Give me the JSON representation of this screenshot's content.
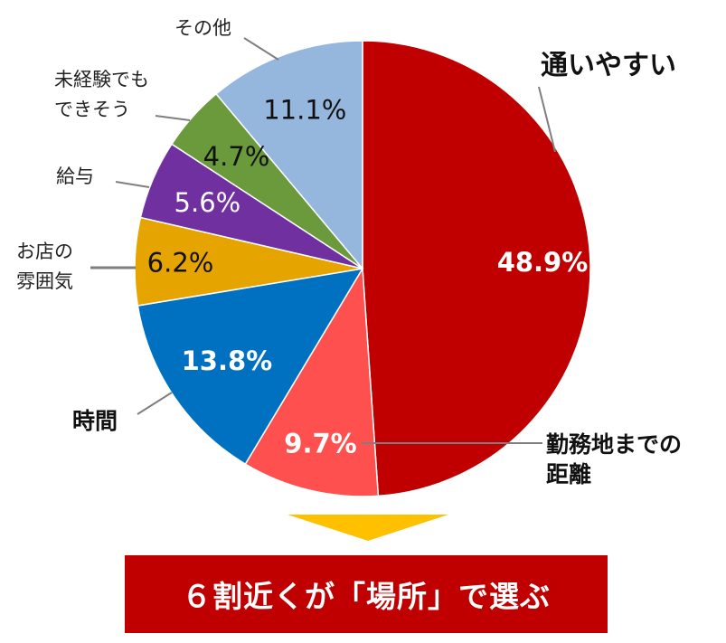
{
  "chart_data": {
    "type": "pie",
    "slices": [
      {
        "label": "通いやすい",
        "value": 48.9,
        "value_label": "48.9%",
        "color": "#c00000"
      },
      {
        "label": "勤務地までの距離",
        "value": 9.7,
        "value_label": "9.7%",
        "color": "#ff5050"
      },
      {
        "label": "時間",
        "value": 13.8,
        "value_label": "13.8%",
        "color": "#0070c0"
      },
      {
        "label": "お店の雰囲気",
        "value": 6.2,
        "value_label": "6.2%",
        "color": "#e6a400"
      },
      {
        "label": "給与",
        "value": 5.6,
        "value_label": "5.6%",
        "color": "#7030a0"
      },
      {
        "label": "未経験でもできそう",
        "value": 4.7,
        "value_label": "4.7%",
        "color": "#6a9a3c"
      },
      {
        "label": "その他",
        "value": 11.1,
        "value_label": "11.1%",
        "color": "#95b6dd"
      }
    ]
  },
  "labels": {
    "kayoi": "通いやすい",
    "kinmu_line1": "勤務地までの",
    "kinmu_line2": "距離",
    "jikan": "時間",
    "omise_line1": "お店の",
    "omise_line2": "雰囲気",
    "kyuyo": "給与",
    "mikeiken_line1": "未経験でも",
    "mikeiken_line2": "できそう",
    "sonota": "その他"
  },
  "banner": {
    "text": "６割近くが「場所」で選ぶ",
    "color": "#c00000",
    "arrow_color": "#ffc000"
  }
}
